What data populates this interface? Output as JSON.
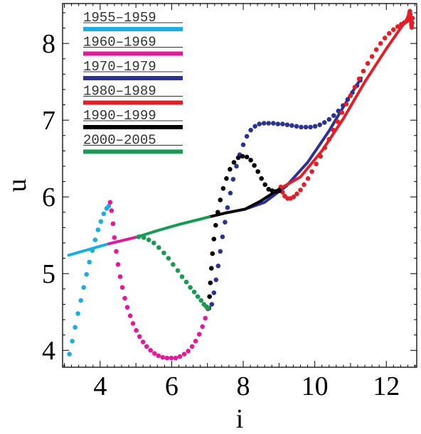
{
  "chart_data": {
    "type": "scatter",
    "title": "",
    "xlabel": "i",
    "ylabel": "u",
    "xlim": [
      2.95,
      12.85
    ],
    "ylim": [
      3.78,
      8.52
    ],
    "x_ticks": [
      "4",
      "6",
      "8",
      "10",
      "12"
    ],
    "y_ticks": [
      "4",
      "5",
      "6",
      "7",
      "8"
    ],
    "legend_position": "top-left",
    "grid": false,
    "series": [
      {
        "name": "1955–1959",
        "color": "#19aee6",
        "line": [
          [
            3.12,
            5.24
          ],
          [
            4.25,
            5.39
          ]
        ],
        "points": [
          [
            3.14,
            3.95
          ],
          [
            3.22,
            4.12
          ],
          [
            3.3,
            4.3
          ],
          [
            3.38,
            4.48
          ],
          [
            3.46,
            4.65
          ],
          [
            3.54,
            4.82
          ],
          [
            3.62,
            4.99
          ],
          [
            3.7,
            5.15
          ],
          [
            3.78,
            5.3
          ],
          [
            3.86,
            5.44
          ],
          [
            3.94,
            5.57
          ],
          [
            4.02,
            5.68
          ],
          [
            4.1,
            5.78
          ],
          [
            4.18,
            5.85
          ],
          [
            4.24,
            5.88
          ]
        ]
      },
      {
        "name": "1960–1969",
        "color": "#e6179a",
        "line": [
          [
            4.25,
            5.39
          ],
          [
            5.05,
            5.48
          ]
        ],
        "points": [
          [
            4.28,
            5.93
          ],
          [
            4.32,
            5.82
          ],
          [
            4.36,
            5.65
          ],
          [
            4.4,
            5.47
          ],
          [
            4.45,
            5.29
          ],
          [
            4.5,
            5.12
          ],
          [
            4.56,
            4.96
          ],
          [
            4.62,
            4.82
          ],
          [
            4.69,
            4.68
          ],
          [
            4.76,
            4.56
          ],
          [
            4.84,
            4.45
          ],
          [
            4.92,
            4.35
          ],
          [
            5.01,
            4.26
          ],
          [
            5.1,
            4.18
          ],
          [
            5.2,
            4.11
          ],
          [
            5.3,
            4.05
          ],
          [
            5.41,
            4.0
          ],
          [
            5.52,
            3.96
          ],
          [
            5.63,
            3.93
          ],
          [
            5.75,
            3.91
          ],
          [
            5.87,
            3.9
          ],
          [
            5.99,
            3.9
          ],
          [
            6.11,
            3.9
          ],
          [
            6.23,
            3.92
          ],
          [
            6.35,
            3.95
          ],
          [
            6.46,
            3.99
          ],
          [
            6.57,
            4.05
          ],
          [
            6.67,
            4.12
          ],
          [
            6.77,
            4.21
          ],
          [
            6.86,
            4.31
          ],
          [
            6.94,
            4.42
          ],
          [
            7.01,
            4.54
          ]
        ]
      },
      {
        "name": "1970–1979",
        "color": "#2b3296",
        "line": [
          [
            8.05,
            5.84
          ],
          [
            8.6,
            5.93
          ],
          [
            9.2,
            6.14
          ],
          [
            9.8,
            6.45
          ],
          [
            10.4,
            6.86
          ],
          [
            11.0,
            7.33
          ],
          [
            11.3,
            7.55
          ]
        ],
        "points": [
          [
            7.12,
            4.6
          ],
          [
            7.18,
            4.75
          ],
          [
            7.24,
            4.92
          ],
          [
            7.3,
            5.1
          ],
          [
            7.36,
            5.29
          ],
          [
            7.42,
            5.48
          ],
          [
            7.49,
            5.67
          ],
          [
            7.56,
            5.86
          ],
          [
            7.64,
            6.05
          ],
          [
            7.72,
            6.23
          ],
          [
            7.81,
            6.4
          ],
          [
            7.9,
            6.55
          ],
          [
            8.0,
            6.68
          ],
          [
            8.1,
            6.79
          ],
          [
            8.21,
            6.87
          ],
          [
            8.33,
            6.92
          ],
          [
            8.45,
            6.95
          ],
          [
            8.58,
            6.96
          ],
          [
            8.71,
            6.96
          ],
          [
            8.84,
            6.96
          ],
          [
            8.97,
            6.95
          ],
          [
            9.1,
            6.95
          ],
          [
            9.23,
            6.94
          ],
          [
            9.36,
            6.93
          ],
          [
            9.49,
            6.92
          ],
          [
            9.62,
            6.91
          ],
          [
            9.75,
            6.91
          ],
          [
            9.88,
            6.91
          ],
          [
            10.01,
            6.92
          ],
          [
            10.14,
            6.94
          ],
          [
            10.27,
            6.97
          ],
          [
            10.4,
            7.01
          ],
          [
            10.53,
            7.06
          ],
          [
            10.66,
            7.12
          ],
          [
            10.79,
            7.19
          ],
          [
            10.92,
            7.27
          ],
          [
            11.05,
            7.36
          ],
          [
            11.18,
            7.45
          ],
          [
            11.27,
            7.52
          ]
        ]
      },
      {
        "name": "1980–1989",
        "color": "#e31e27",
        "line": [
          [
            9.0,
            6.1
          ],
          [
            9.6,
            6.26
          ],
          [
            10.2,
            6.6
          ],
          [
            10.8,
            7.02
          ],
          [
            11.4,
            7.5
          ],
          [
            12.0,
            7.93
          ],
          [
            12.4,
            8.2
          ],
          [
            12.55,
            8.3
          ],
          [
            12.65,
            8.38
          ]
        ],
        "points": [
          [
            9.05,
            6.13
          ],
          [
            9.1,
            6.06
          ],
          [
            9.16,
            6.01
          ],
          [
            9.24,
            5.98
          ],
          [
            9.32,
            5.98
          ],
          [
            9.41,
            6.0
          ],
          [
            9.5,
            6.04
          ],
          [
            9.6,
            6.09
          ],
          [
            9.7,
            6.16
          ],
          [
            9.81,
            6.24
          ],
          [
            9.92,
            6.33
          ],
          [
            10.04,
            6.43
          ],
          [
            10.16,
            6.53
          ],
          [
            10.28,
            6.64
          ],
          [
            10.4,
            6.75
          ],
          [
            10.52,
            6.87
          ],
          [
            10.64,
            6.98
          ],
          [
            10.76,
            7.1
          ],
          [
            10.88,
            7.21
          ],
          [
            11.0,
            7.32
          ],
          [
            11.12,
            7.43
          ],
          [
            11.24,
            7.54
          ],
          [
            11.36,
            7.64
          ],
          [
            11.48,
            7.74
          ],
          [
            11.6,
            7.83
          ],
          [
            11.72,
            7.92
          ],
          [
            11.84,
            8.0
          ],
          [
            11.96,
            8.07
          ],
          [
            12.08,
            8.13
          ],
          [
            12.2,
            8.18
          ],
          [
            12.32,
            8.22
          ],
          [
            12.42,
            8.25
          ],
          [
            12.5,
            8.27
          ],
          [
            12.56,
            8.29
          ],
          [
            12.6,
            8.31
          ],
          [
            12.62,
            8.34
          ],
          [
            12.64,
            8.37
          ],
          [
            12.65,
            8.4
          ],
          [
            12.66,
            8.42
          ],
          [
            12.67,
            8.38
          ],
          [
            12.68,
            8.33
          ],
          [
            12.69,
            8.28
          ],
          [
            12.7,
            8.24
          ],
          [
            12.71,
            8.21
          ],
          [
            12.72,
            8.27
          ],
          [
            12.73,
            8.33
          ]
        ]
      },
      {
        "name": "1990–1999",
        "color": "#000000",
        "line": [
          [
            7.05,
            5.74
          ],
          [
            7.5,
            5.79
          ],
          [
            8.05,
            5.84
          ],
          [
            8.5,
            5.95
          ],
          [
            9.0,
            6.1
          ]
        ],
        "points": [
          [
            7.04,
            4.55
          ],
          [
            7.06,
            4.7
          ],
          [
            7.08,
            4.88
          ],
          [
            7.11,
            5.07
          ],
          [
            7.14,
            5.26
          ],
          [
            7.18,
            5.45
          ],
          [
            7.23,
            5.63
          ],
          [
            7.29,
            5.8
          ],
          [
            7.36,
            5.96
          ],
          [
            7.44,
            6.11
          ],
          [
            7.53,
            6.24
          ],
          [
            7.63,
            6.36
          ],
          [
            7.74,
            6.45
          ],
          [
            7.86,
            6.51
          ],
          [
            7.98,
            6.53
          ],
          [
            8.1,
            6.52
          ],
          [
            8.21,
            6.48
          ],
          [
            8.31,
            6.41
          ],
          [
            8.41,
            6.33
          ],
          [
            8.51,
            6.24
          ],
          [
            8.61,
            6.16
          ],
          [
            8.71,
            6.1
          ],
          [
            8.81,
            6.08
          ],
          [
            8.91,
            6.07
          ],
          [
            9.01,
            6.08
          ]
        ]
      },
      {
        "name": "2000–2005",
        "color": "#169b53",
        "line": [
          [
            5.05,
            5.48
          ],
          [
            5.6,
            5.56
          ],
          [
            6.2,
            5.64
          ],
          [
            6.8,
            5.71
          ],
          [
            7.05,
            5.74
          ]
        ],
        "points": [
          [
            5.08,
            5.48
          ],
          [
            5.22,
            5.47
          ],
          [
            5.36,
            5.44
          ],
          [
            5.5,
            5.4
          ],
          [
            5.64,
            5.34
          ],
          [
            5.78,
            5.27
          ],
          [
            5.91,
            5.2
          ],
          [
            6.04,
            5.12
          ],
          [
            6.17,
            5.04
          ],
          [
            6.29,
            4.96
          ],
          [
            6.41,
            4.89
          ],
          [
            6.52,
            4.82
          ],
          [
            6.63,
            4.76
          ],
          [
            6.73,
            4.7
          ],
          [
            6.82,
            4.65
          ],
          [
            6.9,
            4.6
          ],
          [
            6.97,
            4.57
          ],
          [
            7.02,
            4.55
          ]
        ]
      }
    ]
  }
}
